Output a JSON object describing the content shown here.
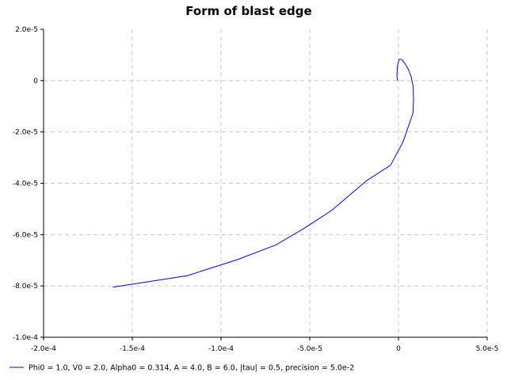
{
  "chart_data": {
    "type": "line",
    "title": "Form of blast edge",
    "xlabel": "",
    "ylabel": "",
    "xlim": [
      -0.0002,
      5e-05
    ],
    "ylim": [
      -0.0001,
      2e-05
    ],
    "x_ticks": [
      {
        "value": -0.0002,
        "label": "-2.0e-4"
      },
      {
        "value": -0.00015,
        "label": "-1.5e-4"
      },
      {
        "value": -0.0001,
        "label": "-1.0e-4"
      },
      {
        "value": -5e-05,
        "label": "-5.0e-5"
      },
      {
        "value": 0,
        "label": "0"
      },
      {
        "value": 5e-05,
        "label": "5.0e-5"
      }
    ],
    "y_ticks": [
      {
        "value": 2e-05,
        "label": "2.0e-5"
      },
      {
        "value": 0,
        "label": "0"
      },
      {
        "value": -2e-05,
        "label": "-2.0e-5"
      },
      {
        "value": -4e-05,
        "label": "-4.0e-5"
      },
      {
        "value": -6e-05,
        "label": "-6.0e-5"
      },
      {
        "value": -8e-05,
        "label": "-8.0e-5"
      },
      {
        "value": -0.0001,
        "label": "-1.0e-4"
      }
    ],
    "grid": true,
    "legend_position": "bottom",
    "series": [
      {
        "name": "Phi0 = 1.0, V0 = 2.0, Alpha0 = 0.314, A = 4.0, B = 6.0, |tau| = 0.5, precision = 5.0e-2",
        "color": "#0000ff",
        "x": [
          -4.5e-07,
          -9e-07,
          -5e-07,
          5e-07,
          2e-06,
          3.5e-06,
          5.5e-06,
          7.2e-06,
          8.3e-06,
          8.5e-06,
          8.2e-06,
          6.5e-06,
          2.5e-06,
          -4.5e-06,
          -1.8e-05,
          -3.75e-05,
          -5.3e-05,
          -6.9e-05,
          -9.1e-05,
          -0.000119,
          -0.000161
        ],
        "y": [
          0,
          2e-06,
          6.2e-06,
          8.3e-06,
          8.2e-06,
          6.8e-06,
          4.5e-06,
          1.5e-06,
          -2.5e-06,
          -7.5e-06,
          -1.25e-05,
          -1.6e-05,
          -2.4e-05,
          -3.3e-05,
          -3.9e-05,
          -5.05e-05,
          -5.75e-05,
          -6.4e-05,
          -6.98e-05,
          -7.6e-05,
          -8.05e-05
        ]
      }
    ]
  }
}
